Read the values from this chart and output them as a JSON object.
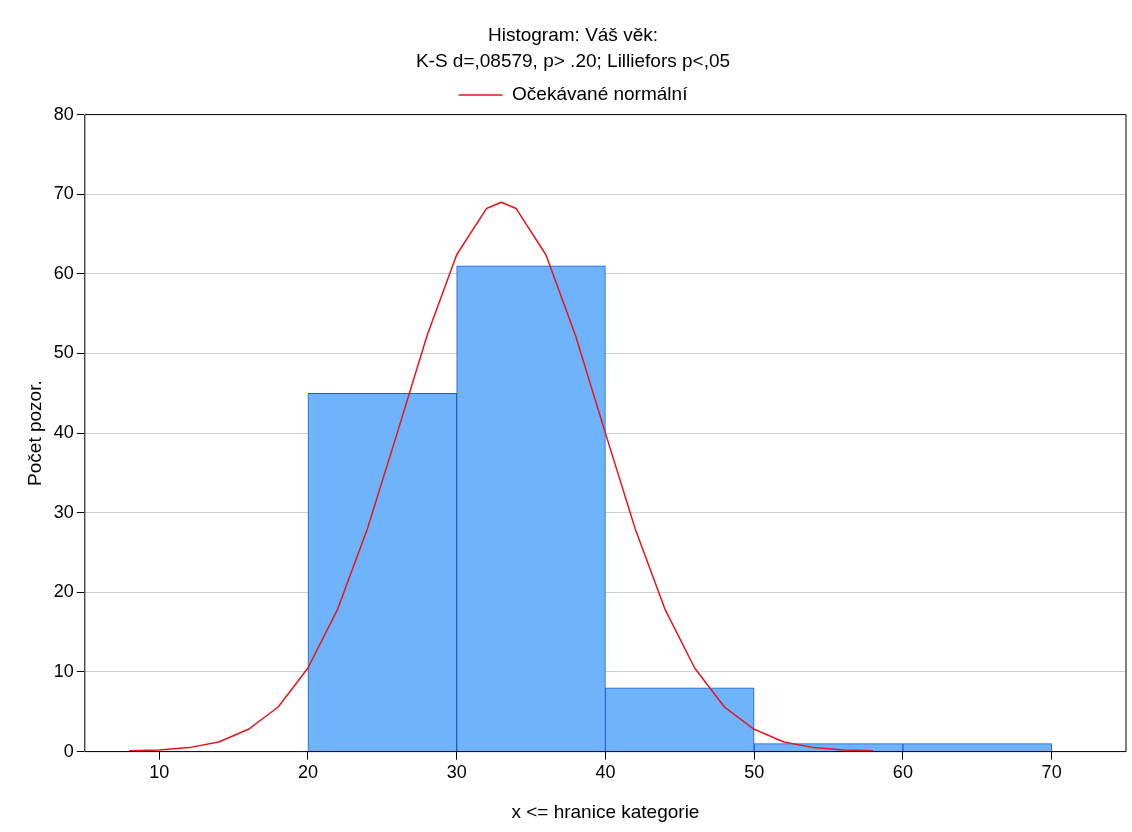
{
  "chart_data": {
    "type": "histogram",
    "title": "Histogram: Váš věk:",
    "subtitle": "K-S d=,08579, p> .20; Lilliefors p<,05",
    "xlabel": "x <= hranice kategorie",
    "ylabel": "Počet pozor.",
    "bins": [
      20,
      30,
      40,
      50,
      60,
      70
    ],
    "values": [
      45,
      61,
      8,
      1,
      1
    ],
    "color": "#6fb4fb",
    "series": [
      {
        "type": "line",
        "name": "Očekávané normální",
        "color": "#e8141c",
        "x": [
          8,
          10,
          12,
          14,
          16,
          18,
          20,
          22,
          24,
          26,
          28,
          30,
          32,
          33,
          34,
          36,
          38,
          40,
          42,
          44,
          46,
          48,
          50,
          52,
          54,
          56,
          58
        ],
        "values": [
          0.1,
          0.2,
          0.5,
          1.2,
          2.8,
          5.6,
          10.5,
          17.9,
          28.0,
          40.0,
          52.2,
          62.4,
          68.2,
          69,
          68.2,
          62.4,
          52.2,
          40.0,
          28.0,
          17.9,
          10.5,
          5.6,
          2.8,
          1.2,
          0.5,
          0.2,
          0.1
        ]
      }
    ],
    "xlim": [
      5,
      75
    ],
    "xticks": [
      10,
      20,
      30,
      40,
      50,
      60,
      70
    ],
    "ylim": [
      0,
      80
    ],
    "yticks": [
      0,
      10,
      20,
      30,
      40,
      50,
      60,
      70,
      80
    ],
    "grid": "y",
    "legend": "top"
  }
}
